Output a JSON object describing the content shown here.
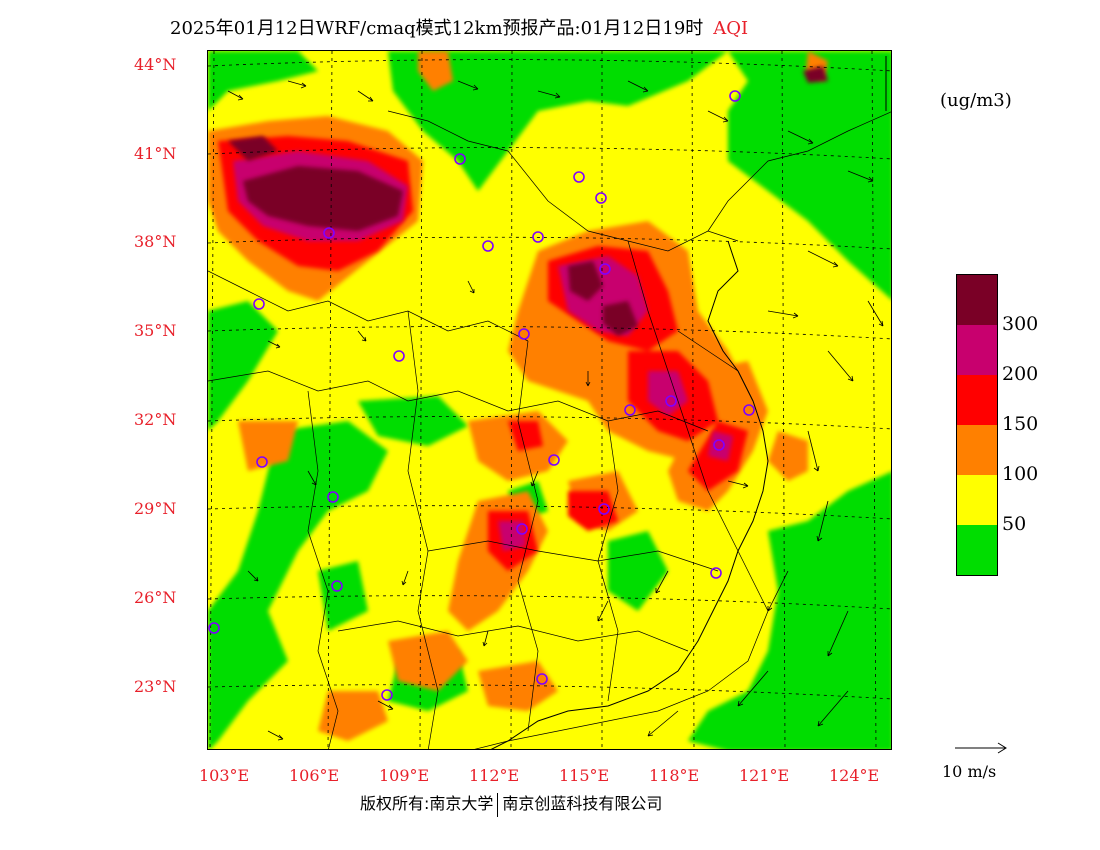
{
  "title": "2025年01月12日WRF/cmaq模式12km预报产品:01月12日19时",
  "title_product": "AQI",
  "lat_labels": [
    "44°N",
    "41°N",
    "38°N",
    "35°N",
    "32°N",
    "29°N",
    "26°N",
    "23°N"
  ],
  "lon_labels": [
    "103°E",
    "106°E",
    "109°E",
    "112°E",
    "115°E",
    "118°E",
    "121°E",
    "124°E"
  ],
  "unit": "(ug/m3)",
  "legend": {
    "labels": [
      "300",
      "200",
      "150",
      "100",
      "50"
    ],
    "colors": [
      "#7a0026",
      "#c8006e",
      "#ff0000",
      "#ff8000",
      "#ffff00",
      "#00dd00"
    ]
  },
  "wind_reference": "10 m/s",
  "copyright": {
    "left": "版权所有:南京大学",
    "right": "南京创蓝科技有限公司"
  }
}
